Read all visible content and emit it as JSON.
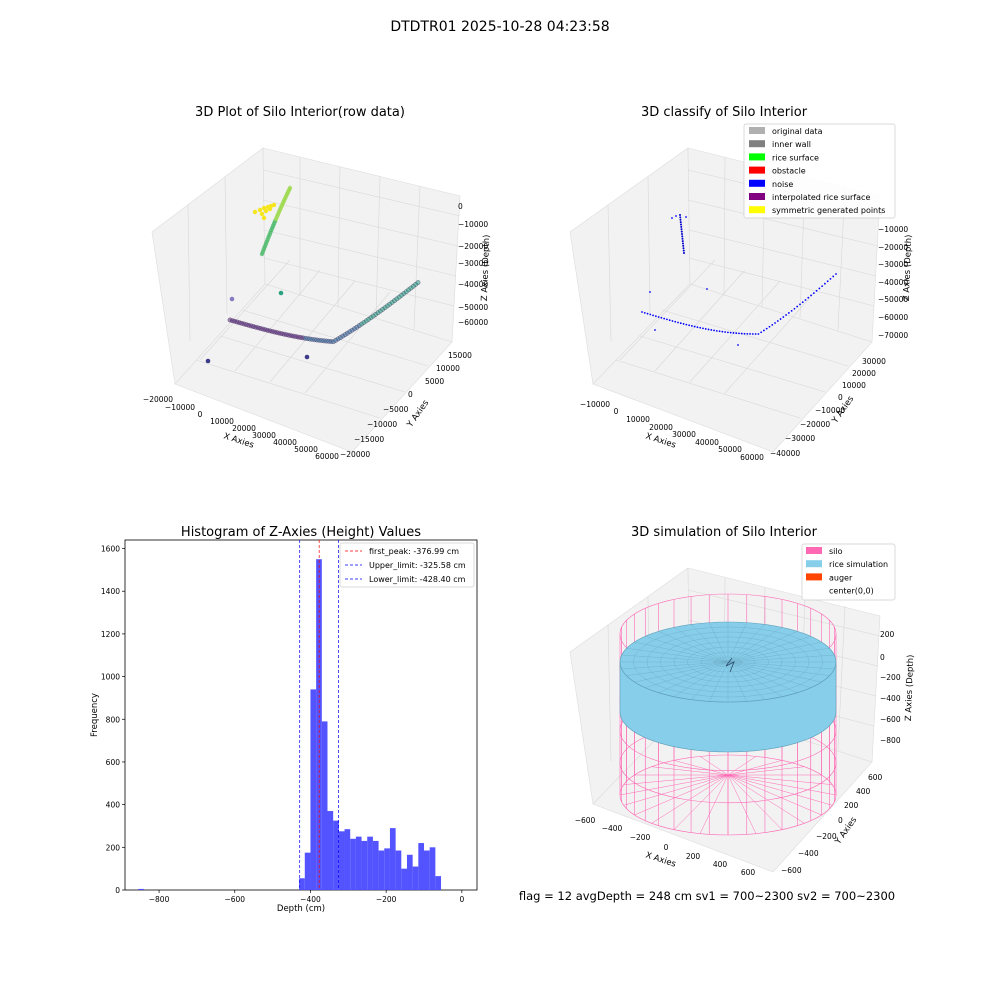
{
  "figure": {
    "suptitle": "DTDTR01 2025-10-28 04:23:58",
    "footer": "flag = 12   avgDepth = 248 cm   sv1 = 700~2300   sv2 = 700~2300"
  },
  "colors": {
    "hist_bar": "#4a4aff",
    "peak_line": "#ff0000",
    "limit_line": "#0000ff",
    "silo": "#ff69b4",
    "rice": "#87ceeb",
    "auger": "#ff4500",
    "noise": "#0000ff"
  },
  "panel1": {
    "title": "3D Plot of Silo Interior(row data)",
    "xlabel": "X Axies",
    "ylabel": "Y Axies",
    "zlabel": "Z Axies (Depth)",
    "xticks": [
      "−20000",
      "−10000",
      "0",
      "10000",
      "20000",
      "30000",
      "40000",
      "50000",
      "60000"
    ],
    "yticks": [
      "−20000",
      "−15000",
      "−10000",
      "−5000",
      "0",
      "5000",
      "10000",
      "15000"
    ],
    "zticks": [
      "−60000",
      "−50000",
      "−40000",
      "−30000",
      "−20000",
      "−10000",
      "0"
    ]
  },
  "panel2": {
    "title": "3D classify of Silo Interior",
    "xlabel": "X Axies",
    "ylabel": "Y Axies",
    "zlabel": "Z Axies (Depth)",
    "xticks": [
      "−10000",
      "0",
      "10000",
      "20000",
      "30000",
      "40000",
      "50000",
      "60000"
    ],
    "yticks": [
      "−40000",
      "−30000",
      "−20000",
      "−10000",
      "0",
      "10000",
      "20000",
      "30000"
    ],
    "zticks": [
      "−70000",
      "−60000",
      "−50000",
      "−40000",
      "−30000",
      "−20000",
      "−10000",
      "0"
    ],
    "legend": [
      {
        "label": "original data",
        "color": "#b0b0b0"
      },
      {
        "label": "inner wall",
        "color": "#808080"
      },
      {
        "label": "rice surface",
        "color": "#00ff00"
      },
      {
        "label": "obstacle",
        "color": "#ff0000"
      },
      {
        "label": "noise",
        "color": "#0000ff"
      },
      {
        "label": "interpolated rice surface",
        "color": "#800080"
      },
      {
        "label": "symmetric generated points",
        "color": "#ffff00"
      }
    ]
  },
  "panel4": {
    "title": "3D simulation of Silo Interior",
    "xlabel": "X Axies",
    "ylabel": "Y Axies",
    "zlabel": "Z Axies (Depth)",
    "xticks": [
      "−600",
      "−400",
      "−200",
      "0",
      "200",
      "400",
      "600"
    ],
    "yticks": [
      "−600",
      "−400",
      "−200",
      "0",
      "200",
      "400",
      "600"
    ],
    "zticks": [
      "−800",
      "−600",
      "−400",
      "−200",
      "0",
      "200"
    ],
    "legend": [
      {
        "label": "silo",
        "color": "#ff69b4"
      },
      {
        "label": "rice simulation",
        "color": "#87ceeb"
      },
      {
        "label": "auger",
        "color": "#ff4500"
      },
      {
        "label": "center(0,0)",
        "color": "#ffffff"
      }
    ]
  },
  "chart_data": [
    {
      "type": "histogram",
      "title": "Histogram of Z-Axies (Height) Values",
      "xlabel": "Depth (cm)",
      "ylabel": "Frequency",
      "xlim": [
        -890,
        40
      ],
      "ylim": [
        0,
        1640
      ],
      "xticks": [
        -800,
        -600,
        -400,
        -200,
        0
      ],
      "yticks": [
        0,
        200,
        400,
        600,
        800,
        1000,
        1200,
        1400,
        1600
      ],
      "bin_width": 15,
      "bins": [
        {
          "x": -855,
          "count": 5
        },
        {
          "x": -430,
          "count": 55
        },
        {
          "x": -415,
          "count": 175
        },
        {
          "x": -400,
          "count": 940
        },
        {
          "x": -385,
          "count": 1550
        },
        {
          "x": -370,
          "count": 790
        },
        {
          "x": -355,
          "count": 370
        },
        {
          "x": -340,
          "count": 325
        },
        {
          "x": -325,
          "count": 275
        },
        {
          "x": -310,
          "count": 285
        },
        {
          "x": -295,
          "count": 240
        },
        {
          "x": -280,
          "count": 250
        },
        {
          "x": -265,
          "count": 230
        },
        {
          "x": -250,
          "count": 250
        },
        {
          "x": -235,
          "count": 230
        },
        {
          "x": -220,
          "count": 185
        },
        {
          "x": -205,
          "count": 195
        },
        {
          "x": -190,
          "count": 290
        },
        {
          "x": -175,
          "count": 185
        },
        {
          "x": -160,
          "count": 100
        },
        {
          "x": -145,
          "count": 165
        },
        {
          "x": -130,
          "count": 110
        },
        {
          "x": -115,
          "count": 220
        },
        {
          "x": -100,
          "count": 185
        },
        {
          "x": -85,
          "count": 200
        },
        {
          "x": -70,
          "count": 65
        }
      ],
      "vlines": [
        {
          "x": -376.99,
          "label": "first_peak: -376.99 cm",
          "color": "#ff0000"
        },
        {
          "x": -325.58,
          "label": "Upper_limit: -325.58 cm",
          "color": "#0000ff"
        },
        {
          "x": -428.4,
          "label": "Lower_limit: -428.40 cm",
          "color": "#0000ff"
        }
      ],
      "legend_position": "top-right"
    }
  ]
}
